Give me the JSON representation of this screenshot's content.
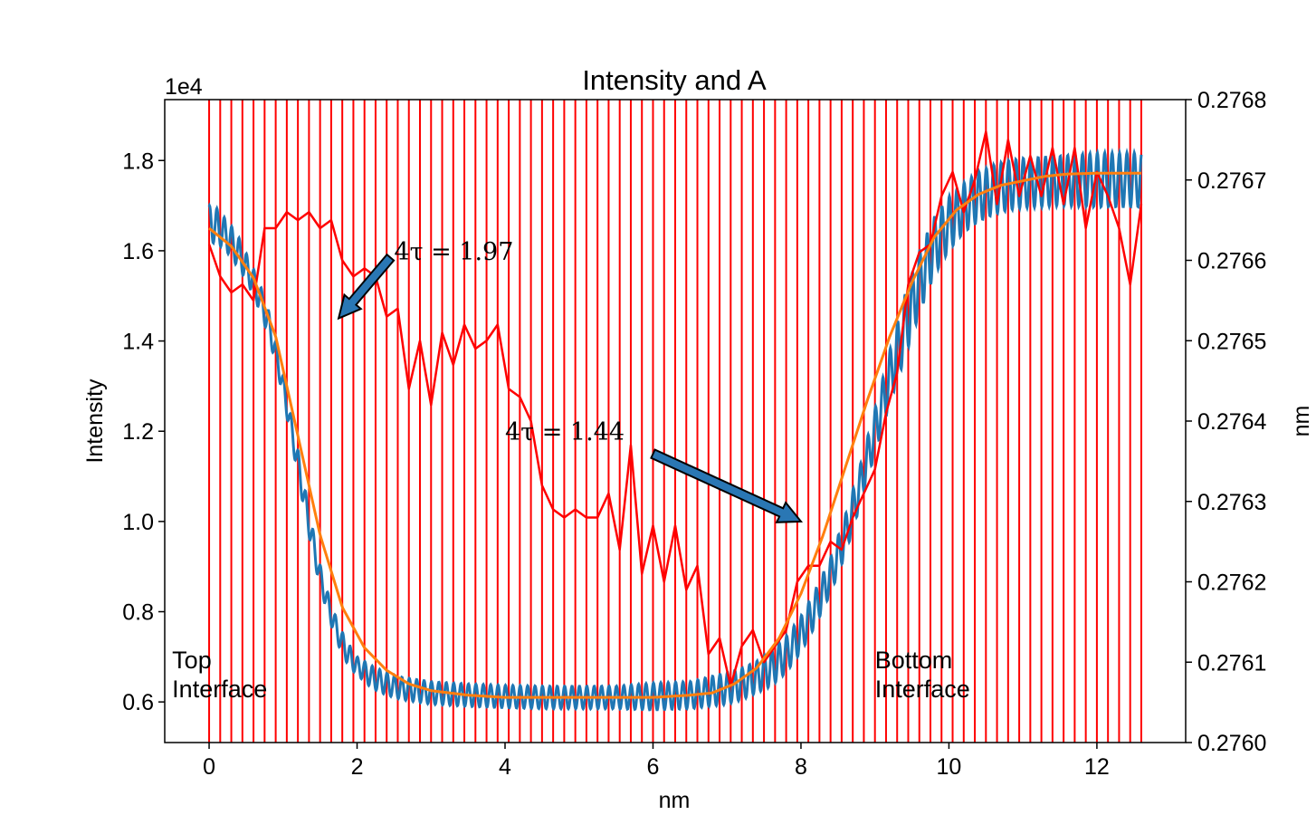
{
  "chart_data": {
    "type": "line",
    "title": "Intensity and A",
    "xlabel": "nm",
    "ylabel": "Intensity",
    "y2label": "nm",
    "offset_text": "1e4",
    "xlim": [
      -0.6,
      13.2
    ],
    "ylim": [
      0.51,
      1.935
    ],
    "y2lim": [
      0.276,
      0.2768
    ],
    "x_ticks": [
      0,
      2,
      4,
      6,
      8,
      10,
      12
    ],
    "x_tick_labels": [
      "0",
      "2",
      "4",
      "6",
      "8",
      "10",
      "12"
    ],
    "y_ticks": [
      0.6,
      0.8,
      1.0,
      1.2,
      1.4,
      1.6,
      1.8
    ],
    "y_tick_labels": [
      "0.6",
      "0.8",
      "1.0",
      "1.2",
      "1.4",
      "1.6",
      "1.8"
    ],
    "y2_ticks": [
      0.276,
      0.2761,
      0.2762,
      0.2763,
      0.2764,
      0.2765,
      0.2766,
      0.2767,
      0.2768
    ],
    "y2_tick_labels": [
      "0.2760",
      "0.2761",
      "0.2762",
      "0.2763",
      "0.2764",
      "0.2765",
      "0.2766",
      "0.2767",
      "0.2768"
    ],
    "grid": false,
    "vertical_lines": {
      "color": "#ff0000",
      "x": [
        0,
        0.15,
        0.3,
        0.45,
        0.6,
        0.75,
        0.9,
        1.05,
        1.2,
        1.35,
        1.5,
        1.65,
        1.8,
        1.95,
        2.1,
        2.25,
        2.4,
        2.55,
        2.7,
        2.85,
        3.0,
        3.15,
        3.3,
        3.45,
        3.6,
        3.75,
        3.9,
        4.05,
        4.2,
        4.35,
        4.5,
        4.65,
        4.8,
        4.95,
        5.1,
        5.25,
        5.4,
        5.55,
        5.7,
        5.85,
        6.0,
        6.15,
        6.3,
        6.45,
        6.6,
        6.75,
        6.9,
        7.05,
        7.2,
        7.35,
        7.5,
        7.65,
        7.8,
        7.95,
        8.1,
        8.25,
        8.4,
        8.55,
        8.7,
        8.85,
        9.0,
        9.15,
        9.3,
        9.45,
        9.6,
        9.75,
        9.9,
        10.05,
        10.2,
        10.35,
        10.5,
        10.65,
        10.8,
        10.95,
        11.1,
        11.25,
        11.4,
        11.55,
        11.7,
        11.85,
        12.0,
        12.15,
        12.3,
        12.45,
        12.6
      ]
    },
    "series": [
      {
        "color": "#1f77b4",
        "axis": "left",
        "x": [
          0,
          0.1,
          0.2,
          0.3,
          0.4,
          0.5,
          0.6,
          0.7,
          0.8,
          0.9,
          1.0,
          1.1,
          1.2,
          1.3,
          1.4,
          1.5,
          1.6,
          1.7,
          1.8,
          1.9,
          2.0,
          2.2,
          2.4,
          2.6,
          2.8,
          3.0,
          3.5,
          4.0,
          4.5,
          5.0,
          5.5,
          6.0,
          6.5,
          7.0,
          7.2,
          7.4,
          7.6,
          7.8,
          8.0,
          8.2,
          8.4,
          8.6,
          8.8,
          9.0,
          9.2,
          9.4,
          9.6,
          9.8,
          10.0,
          10.2,
          10.4,
          10.6,
          10.8,
          11.0,
          11.5,
          12.0,
          12.6
        ],
        "values": [
          1.66,
          1.655,
          1.64,
          1.62,
          1.595,
          1.565,
          1.53,
          1.49,
          1.44,
          1.375,
          1.3,
          1.215,
          1.13,
          1.04,
          0.955,
          0.88,
          0.82,
          0.77,
          0.73,
          0.7,
          0.68,
          0.655,
          0.64,
          0.63,
          0.625,
          0.62,
          0.615,
          0.612,
          0.61,
          0.61,
          0.61,
          0.612,
          0.615,
          0.63,
          0.64,
          0.655,
          0.675,
          0.705,
          0.75,
          0.81,
          0.88,
          0.97,
          1.08,
          1.2,
          1.32,
          1.43,
          1.53,
          1.61,
          1.66,
          1.695,
          1.72,
          1.735,
          1.745,
          1.75,
          1.755,
          1.757,
          1.757
        ],
        "oscillation_amplitude": [
          0.04,
          0.04,
          0.035,
          0.035,
          0.035,
          0.03,
          0.03,
          0.03,
          0.03,
          0.025,
          0.025,
          0.025,
          0.03,
          0.03,
          0.03,
          0.025,
          0.025,
          0.025,
          0.025,
          0.025,
          0.02,
          0.025,
          0.025,
          0.025,
          0.025,
          0.025,
          0.025,
          0.025,
          0.025,
          0.025,
          0.025,
          0.03,
          0.03,
          0.035,
          0.035,
          0.035,
          0.04,
          0.04,
          0.04,
          0.04,
          0.04,
          0.045,
          0.045,
          0.05,
          0.06,
          0.07,
          0.07,
          0.065,
          0.06,
          0.055,
          0.055,
          0.055,
          0.055,
          0.055,
          0.055,
          0.06,
          0.06
        ]
      },
      {
        "color": "#ff7f0e",
        "axis": "left",
        "x": [
          0,
          0.3,
          0.6,
          0.9,
          1.2,
          1.5,
          1.8,
          2.1,
          2.4,
          2.7,
          3.0,
          3.5,
          4.0,
          4.5,
          5.0,
          5.5,
          6.0,
          6.5,
          6.8,
          7.1,
          7.4,
          7.7,
          8.0,
          8.3,
          8.6,
          8.9,
          9.2,
          9.5,
          9.8,
          10.1,
          10.4,
          10.7,
          11.0,
          11.3,
          11.6,
          12.0,
          12.6
        ],
        "values": [
          1.65,
          1.61,
          1.54,
          1.41,
          1.19,
          0.97,
          0.81,
          0.72,
          0.67,
          0.64,
          0.625,
          0.615,
          0.61,
          0.61,
          0.61,
          0.61,
          0.61,
          0.615,
          0.62,
          0.64,
          0.675,
          0.74,
          0.84,
          0.97,
          1.12,
          1.27,
          1.41,
          1.53,
          1.63,
          1.69,
          1.725,
          1.745,
          1.755,
          1.765,
          1.77,
          1.772,
          1.772
        ]
      },
      {
        "color": "#ff0000",
        "axis": "right",
        "x": [
          0,
          0.15,
          0.3,
          0.45,
          0.6,
          0.75,
          0.9,
          1.05,
          1.2,
          1.35,
          1.5,
          1.65,
          1.8,
          1.95,
          2.1,
          2.25,
          2.4,
          2.55,
          2.7,
          2.85,
          3.0,
          3.15,
          3.3,
          3.45,
          3.6,
          3.75,
          3.9,
          4.05,
          4.2,
          4.35,
          4.5,
          4.65,
          4.8,
          4.95,
          5.1,
          5.25,
          5.4,
          5.55,
          5.7,
          5.85,
          6.0,
          6.15,
          6.3,
          6.45,
          6.6,
          6.75,
          6.9,
          7.05,
          7.2,
          7.35,
          7.5,
          7.65,
          7.8,
          7.95,
          8.1,
          8.25,
          8.4,
          8.55,
          8.7,
          8.85,
          9.0,
          9.15,
          9.3,
          9.45,
          9.6,
          9.75,
          9.9,
          10.05,
          10.2,
          10.35,
          10.5,
          10.65,
          10.8,
          10.95,
          11.1,
          11.25,
          11.4,
          11.55,
          11.7,
          11.85,
          12.0,
          12.15,
          12.3,
          12.45,
          12.6
        ],
        "values": [
          0.27662,
          0.27658,
          0.27656,
          0.27657,
          0.27655,
          0.27664,
          0.27664,
          0.27666,
          0.27665,
          0.27666,
          0.27664,
          0.27665,
          0.2766,
          0.27658,
          0.27659,
          0.27658,
          0.27653,
          0.27654,
          0.27644,
          0.2765,
          0.27642,
          0.27651,
          0.27647,
          0.27652,
          0.27649,
          0.2765,
          0.27652,
          0.27644,
          0.27643,
          0.2764,
          0.27632,
          0.27629,
          0.27628,
          0.27629,
          0.27628,
          0.27628,
          0.27631,
          0.27624,
          0.27637,
          0.27621,
          0.27627,
          0.2762,
          0.27627,
          0.27619,
          0.27622,
          0.27611,
          0.27613,
          0.27607,
          0.27612,
          0.27614,
          0.2761,
          0.27612,
          0.27614,
          0.2762,
          0.27622,
          0.27622,
          0.27625,
          0.27624,
          0.27628,
          0.27631,
          0.27634,
          0.27641,
          0.27646,
          0.27657,
          0.27661,
          0.27662,
          0.27668,
          0.27671,
          0.27666,
          0.2767,
          0.27676,
          0.27667,
          0.27675,
          0.27668,
          0.27673,
          0.27668,
          0.27674,
          0.27667,
          0.27674,
          0.27664,
          0.27671,
          0.27668,
          0.27664,
          0.27657,
          0.27667
        ]
      }
    ],
    "annotations": [
      {
        "text": "4τ = 1.97",
        "text_x": 2.5,
        "text_y": 1.6,
        "arrow_from": [
          2.45,
          1.585
        ],
        "arrow_to": [
          1.75,
          1.45
        ]
      },
      {
        "text": "4τ = 1.44",
        "text_x": 4.0,
        "text_y": 1.2,
        "arrow_from": [
          6.0,
          1.15
        ],
        "arrow_to": [
          8.0,
          1.0
        ]
      },
      {
        "text": "Top\nInterface",
        "text_x": -0.5,
        "text_y": 0.63
      },
      {
        "text": "Bottom\nInterface",
        "text_x": 9.0,
        "text_y": 0.63
      }
    ]
  }
}
